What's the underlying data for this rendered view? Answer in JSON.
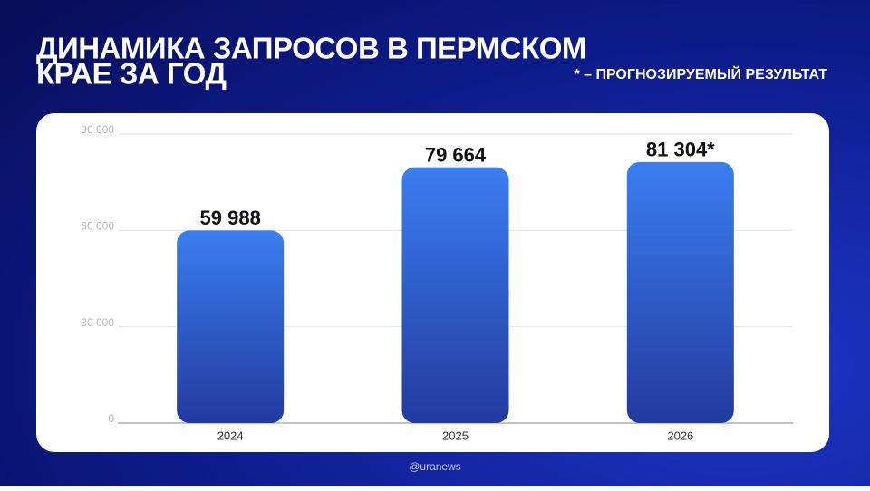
{
  "chart_data": {
    "type": "bar",
    "title": [
      "ДИНАМИКА ЗАПРОСОВ В ПЕРМСКОМ",
      "КРАЕ ЗА ГОД"
    ],
    "subtitle": "* – ПРОГНОЗИРУЕМЫЙ РЕЗУЛЬТАТ",
    "source": "@uranews",
    "categories": [
      "2024",
      "2025",
      "2026"
    ],
    "values": [
      59988,
      79664,
      81304
    ],
    "value_labels": [
      "59 988",
      "79 664",
      "81 304*"
    ],
    "color": "#2f63d6",
    "ylim": [
      0,
      90000
    ],
    "yticks": [
      0,
      {
        "value": 30000,
        "label": "30 000"
      },
      {
        "value": 60000,
        "label": "60 000"
      },
      {
        "value": 90000,
        "label": "90 000"
      }
    ],
    "grid": true
  }
}
